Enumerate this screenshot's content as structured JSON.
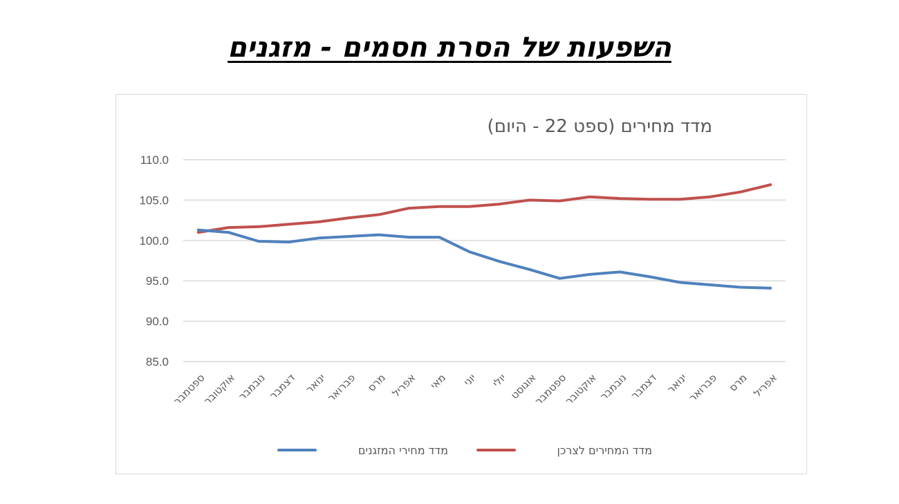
{
  "page": {
    "title": "השפעות של הסרת חסמים - מזגנים"
  },
  "chart_data": {
    "type": "line",
    "title": "מדד מחירים (ספט 22 - היום)",
    "categories": [
      "ספטמבר",
      "אוקטובר",
      "נובמבר",
      "דצמבר",
      "ינואר",
      "פברואר",
      "מרס",
      "אפריל",
      "מאי",
      "יוני",
      "יולי",
      "אוגוסט",
      "ספטמבר",
      "אוקטובר",
      "נובמבר",
      "דצמבר",
      "ינואר",
      "פברואר",
      "מרס",
      "אפריל"
    ],
    "ylim": [
      85,
      110
    ],
    "yticks": [
      "85.0",
      "90.0",
      "95.0",
      "100.0",
      "105.0",
      "110.0"
    ],
    "grid": true,
    "legend_position": "bottom",
    "series": [
      {
        "name": "מדד המחירים לצרכן",
        "color": "#c0504d",
        "values": [
          101.0,
          101.6,
          101.7,
          102.0,
          102.3,
          102.8,
          103.2,
          104.0,
          104.2,
          104.2,
          104.5,
          105.0,
          104.9,
          105.4,
          105.2,
          105.1,
          105.1,
          105.4,
          106.0,
          106.9
        ]
      },
      {
        "name": "מדד מחירי המזגנים",
        "color": "#4f81bd",
        "values": [
          101.3,
          101.0,
          99.9,
          99.8,
          100.3,
          100.5,
          100.7,
          100.4,
          100.4,
          98.6,
          97.4,
          96.4,
          95.3,
          95.8,
          96.1,
          95.5,
          94.8,
          94.5,
          94.2,
          94.1
        ]
      }
    ]
  }
}
